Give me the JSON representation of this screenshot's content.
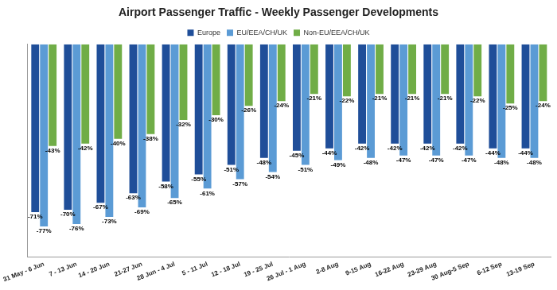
{
  "chart_data": {
    "type": "bar",
    "title": "Airport Passenger Traffic - Weekly Passenger Developments",
    "categories": [
      "31 May - 6 Jun",
      "7 - 13 Jun",
      "14 - 20 Jun",
      "21-27 Jun",
      "28 Jun - 4 Jul",
      "5 - 11 Jul",
      "12 - 18 Jul",
      "19 - 25 Jul",
      "26 Jul - 1 Aug",
      "2-8 Aug",
      "9-15 Aug",
      "16-22 Aug",
      "23-29 Aug",
      "30 Aug-5 Sep",
      "6-12 Sep",
      "13-19 Sep"
    ],
    "series": [
      {
        "name": "Europe",
        "color": "#1f4e99",
        "values": [
          -71,
          -70,
          -67,
          -63,
          -58,
          -55,
          -51,
          -48,
          -45,
          -44,
          -42,
          -42,
          -42,
          -42,
          -44,
          -44
        ],
        "value_labels": [
          "-71%",
          "-70%",
          "-67%",
          "-63%",
          "-58%",
          "-55%",
          "-51%",
          "-48%",
          "-45%",
          "-44%",
          "-42%",
          "-42%",
          "-42%",
          "-42%",
          "-44%",
          "-44%"
        ]
      },
      {
        "name": "EU/EEA/CH/UK",
        "color": "#5b9bd5",
        "values": [
          -77,
          -76,
          -73,
          -69,
          -65,
          -61,
          -57,
          -54,
          -51,
          -49,
          -48,
          -47,
          -47,
          -47,
          -48,
          -48
        ],
        "value_labels": [
          "-77%",
          "-76%",
          "-73%",
          "-69%",
          "-65%",
          "-61%",
          "-57%",
          "-54%",
          "-51%",
          "-49%",
          "-48%",
          "-47%",
          "-47%",
          "-47%",
          "-48%",
          "-48%"
        ]
      },
      {
        "name": "Non-EU/EEA/CH/UK",
        "color": "#70ad47",
        "values": [
          -43,
          -42,
          -40,
          -38,
          -32,
          -30,
          -26,
          -24,
          -21,
          -22,
          -21,
          -21,
          -21,
          -22,
          -25,
          -24
        ],
        "value_labels": [
          "-43%",
          "-42%",
          "-40%",
          "-38%",
          "-32%",
          "-30%",
          "-26%",
          "-24%",
          "-21%",
          "-22%",
          "-21%",
          "-21%",
          "-21%",
          "-22%",
          "-25%",
          "-24%"
        ]
      }
    ],
    "ylim": [
      -90,
      0
    ],
    "grid": false,
    "legend": "top",
    "data_labels": true,
    "tick_labels": "x"
  }
}
